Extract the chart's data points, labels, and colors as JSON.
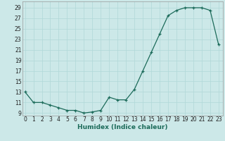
{
  "x": [
    0,
    1,
    2,
    3,
    4,
    5,
    6,
    7,
    8,
    9,
    10,
    11,
    12,
    13,
    14,
    15,
    16,
    17,
    18,
    19,
    20,
    21,
    22,
    23
  ],
  "y_data": [
    13,
    11,
    11,
    10.5,
    10,
    9.5,
    9.5,
    9,
    9.2,
    9.5,
    12,
    11.5,
    11.5,
    13.5,
    17,
    20.5,
    24,
    27.5,
    28.5,
    29,
    29,
    29,
    28.5,
    22
  ],
  "xlabel": "Humidex (Indice chaleur)",
  "line_color": "#1c6b5a",
  "bg_color": "#cce8e8",
  "grid_color": "#b0d8d8",
  "ylim": [
    8.5,
    30.2
  ],
  "xlim": [
    -0.3,
    23.5
  ],
  "yticks": [
    9,
    11,
    13,
    15,
    17,
    19,
    21,
    23,
    25,
    27,
    29
  ],
  "xticks": [
    0,
    1,
    2,
    3,
    4,
    5,
    6,
    7,
    8,
    9,
    10,
    11,
    12,
    13,
    14,
    15,
    16,
    17,
    18,
    19,
    20,
    21,
    22,
    23
  ],
  "xlabel_fontsize": 6.5,
  "xlabel_fontweight": "bold",
  "tick_fontsize": 5.5
}
